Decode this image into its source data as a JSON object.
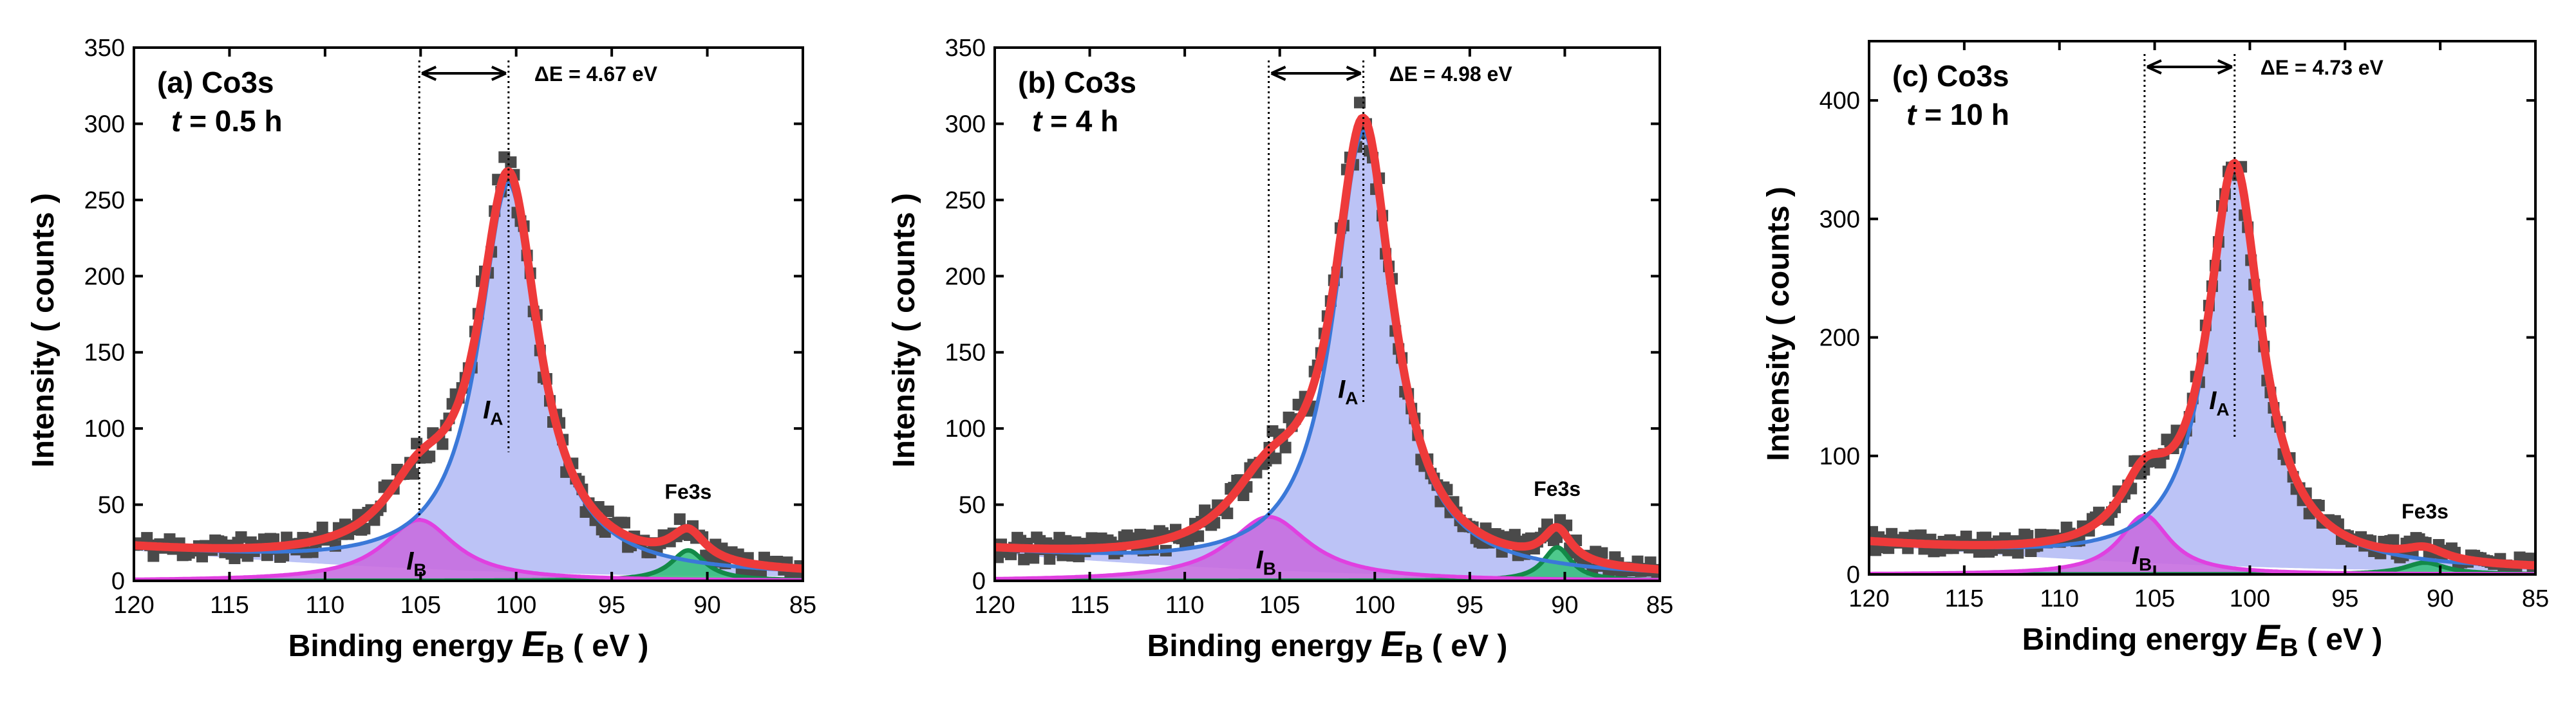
{
  "chart_data": [
    {
      "type": "scatter",
      "panel": "(a)",
      "title": "(a) Co3s",
      "time_label": "t = 0.5 h",
      "time_prefix": "t",
      "time_value": " = 0.5 h",
      "xlabel_main": "Binding energy ",
      "xlabel_var": "E",
      "xlabel_sub": "B",
      "xlabel_unit": " ( eV )",
      "ylabel": "Intensity ( counts )",
      "xlim": [
        120,
        85
      ],
      "ylim": [
        0,
        350
      ],
      "xticks": [
        120,
        115,
        110,
        105,
        100,
        95,
        90,
        85
      ],
      "yticks": [
        0,
        50,
        100,
        150,
        200,
        250,
        300,
        350
      ],
      "delta_e_text": "ΔE = 4.67 eV",
      "peak_a_energy": 100.4,
      "peak_b_energy": 105.07,
      "label_ia": "I",
      "label_ia_sub": "A",
      "label_ib": "I",
      "label_ib_sub": "B",
      "label_fe": "Fe3s",
      "background": {
        "left": 20,
        "right": 3
      },
      "series": [
        {
          "name": "I_A peak",
          "center": 100.4,
          "amplitude": 255,
          "width": 1.9,
          "color": "#3a78d8"
        },
        {
          "name": "I_B peak",
          "center": 105.07,
          "amplitude": 40,
          "width": 2.3,
          "color": "#e040e0"
        },
        {
          "name": "Fe3s peak",
          "center": 91.0,
          "amplitude": 20,
          "width": 1.1,
          "color": "#138a48"
        }
      ],
      "data_seed": 11
    },
    {
      "type": "scatter",
      "panel": "(b)",
      "title": "(b) Co3s",
      "time_label": "t = 4 h",
      "time_prefix": "t",
      "time_value": " = 4 h",
      "xlabel_main": "Binding energy ",
      "xlabel_var": "E",
      "xlabel_sub": "B",
      "xlabel_unit": " ( eV )",
      "ylabel": "Intensity ( counts )",
      "xlim": [
        120,
        85
      ],
      "ylim": [
        0,
        350
      ],
      "xticks": [
        120,
        115,
        110,
        105,
        100,
        95,
        90,
        85
      ],
      "yticks": [
        0,
        50,
        100,
        150,
        200,
        250,
        300,
        350
      ],
      "delta_e_text": "ΔE = 4.98 eV",
      "peak_a_energy": 100.6,
      "peak_b_energy": 105.58,
      "label_ia": "I",
      "label_ia_sub": "A",
      "label_ib": "I",
      "label_ib_sub": "B",
      "label_fe": "Fe3s",
      "background": {
        "left": 18,
        "right": 2
      },
      "series": [
        {
          "name": "I_A peak",
          "center": 100.6,
          "amplitude": 290,
          "width": 1.9,
          "color": "#3a78d8"
        },
        {
          "name": "I_B peak",
          "center": 105.58,
          "amplitude": 42,
          "width": 2.6,
          "color": "#e040e0"
        },
        {
          "name": "Fe3s peak",
          "center": 90.4,
          "amplitude": 22,
          "width": 0.9,
          "color": "#138a48"
        }
      ],
      "data_seed": 23
    },
    {
      "type": "scatter",
      "panel": "(c)",
      "title": "(c) Co3s",
      "time_label": "t = 10 h",
      "time_prefix": "t",
      "time_value": " = 10 h",
      "xlabel_main": "Binding energy ",
      "xlabel_var": "E",
      "xlabel_sub": "B",
      "xlabel_unit": " ( eV )",
      "ylabel": "Intensity ( counts )",
      "xlim": [
        120,
        85
      ],
      "ylim": [
        0,
        450
      ],
      "xticks": [
        120,
        115,
        110,
        105,
        100,
        95,
        90,
        85
      ],
      "yticks": [
        0,
        100,
        200,
        300,
        400
      ],
      "delta_e_text": "ΔE = 4.73 eV",
      "peak_a_energy": 100.8,
      "peak_b_energy": 105.53,
      "label_ia": "I",
      "label_ia_sub": "A",
      "label_ib": "I",
      "label_ib_sub": "B",
      "label_fe": "Fe3s",
      "background": {
        "left": 25,
        "right": 3
      },
      "series": [
        {
          "name": "I_A peak",
          "center": 100.8,
          "amplitude": 335,
          "width": 1.7,
          "color": "#3a78d8"
        },
        {
          "name": "I_B peak",
          "center": 105.53,
          "amplitude": 50,
          "width": 1.6,
          "color": "#e040e0"
        },
        {
          "name": "Fe3s peak",
          "center": 90.8,
          "amplitude": 10,
          "width": 1.3,
          "color": "#138a48"
        }
      ],
      "data_seed": 37
    }
  ],
  "colors": {
    "data_points": "#4a4a4a",
    "envelope": "#ee3a3a",
    "fill_a": "#b8c0f6",
    "fill_b": "#c66ee0",
    "fill_fe": "#2fbf78",
    "background_line": "#3a78d8"
  }
}
